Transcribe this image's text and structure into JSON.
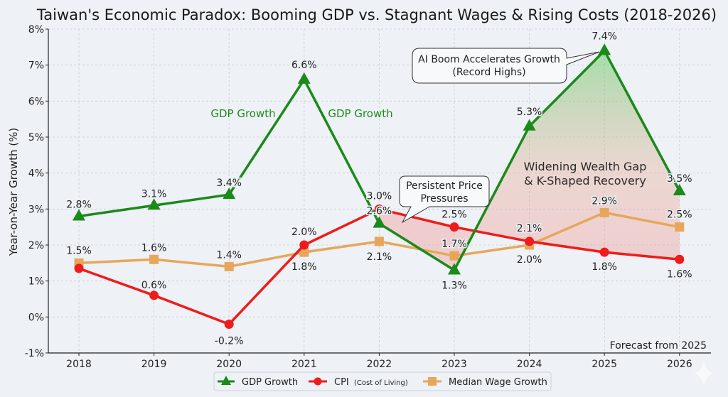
{
  "chart_data": {
    "type": "line",
    "title": "Taiwan's Economic Paradox: Booming GDP vs. Stagnant Wages & Rising Costs (2018-2026)",
    "xlabel": "",
    "ylabel": "Year-on-Year Growth (%)",
    "x": [
      "2018",
      "2019",
      "2020",
      "2021",
      "2022",
      "2023",
      "2024",
      "2025",
      "2026"
    ],
    "ylim": [
      -1,
      8
    ],
    "yticks": [
      "-1%",
      "0%",
      "1%",
      "2%",
      "3%",
      "4%",
      "5%",
      "6%",
      "7%",
      "8%"
    ],
    "ytick_values": [
      -1,
      0,
      1,
      2,
      3,
      4,
      5,
      6,
      7,
      8
    ],
    "grid": true,
    "legend_position": "bottom-center",
    "series": [
      {
        "name": "GDP Growth",
        "color": "#1a8a1a",
        "marker": "triangle",
        "values": [
          2.8,
          3.1,
          3.4,
          6.6,
          2.6,
          1.3,
          5.3,
          7.4,
          3.5
        ],
        "labels": [
          "2.8%",
          "3.1%",
          "3.4%",
          "6.6%",
          "2.6%",
          "1.3%",
          "5.3%",
          "7.4%",
          "3.5%"
        ]
      },
      {
        "name": "CPI",
        "name_suffix": "(Cost of Living)",
        "color": "#ee1c1c",
        "marker": "circle",
        "values": [
          1.35,
          0.6,
          -0.2,
          2.0,
          3.0,
          2.5,
          2.1,
          1.8,
          1.6
        ],
        "labels": [
          "",
          "0.6%",
          "-0.2%",
          "2.0%",
          "3.0%",
          "2.5%",
          "2.1%",
          "1.8%",
          "1.6%"
        ]
      },
      {
        "name": "Median Wage Growth",
        "color": "#e6a75a",
        "marker": "square",
        "values": [
          1.5,
          1.6,
          1.4,
          1.8,
          2.1,
          1.7,
          2.0,
          2.9,
          2.5
        ],
        "labels": [
          "1.5%",
          "1.6%",
          "1.4%",
          "1.8%",
          "2.1%",
          "1.7%",
          "2.0%",
          "2.9%",
          "2.5%"
        ]
      }
    ],
    "annotations": [
      {
        "id": "gdp-growth-left",
        "text": "GDP Growth",
        "x": 2020.1,
        "y": 5.75
      },
      {
        "id": "gdp-growth-right",
        "text": "GDP Growth",
        "x": 2021.9,
        "y": 5.75
      },
      {
        "id": "ai-boom",
        "lines": [
          "AI Boom Accelerates Growth",
          "(Record Highs)"
        ],
        "points_to": [
          "2025",
          7.4
        ]
      },
      {
        "id": "price-pressures",
        "lines": [
          "Persistent Price",
          "Pressures"
        ],
        "points_to": [
          "2022.3",
          2.8
        ]
      },
      {
        "id": "wealth-gap",
        "lines": [
          "Widening Wealth Gap",
          "& K-Shaped Recovery"
        ]
      },
      {
        "id": "forecast-note",
        "text": "Forecast from 2025"
      }
    ]
  }
}
